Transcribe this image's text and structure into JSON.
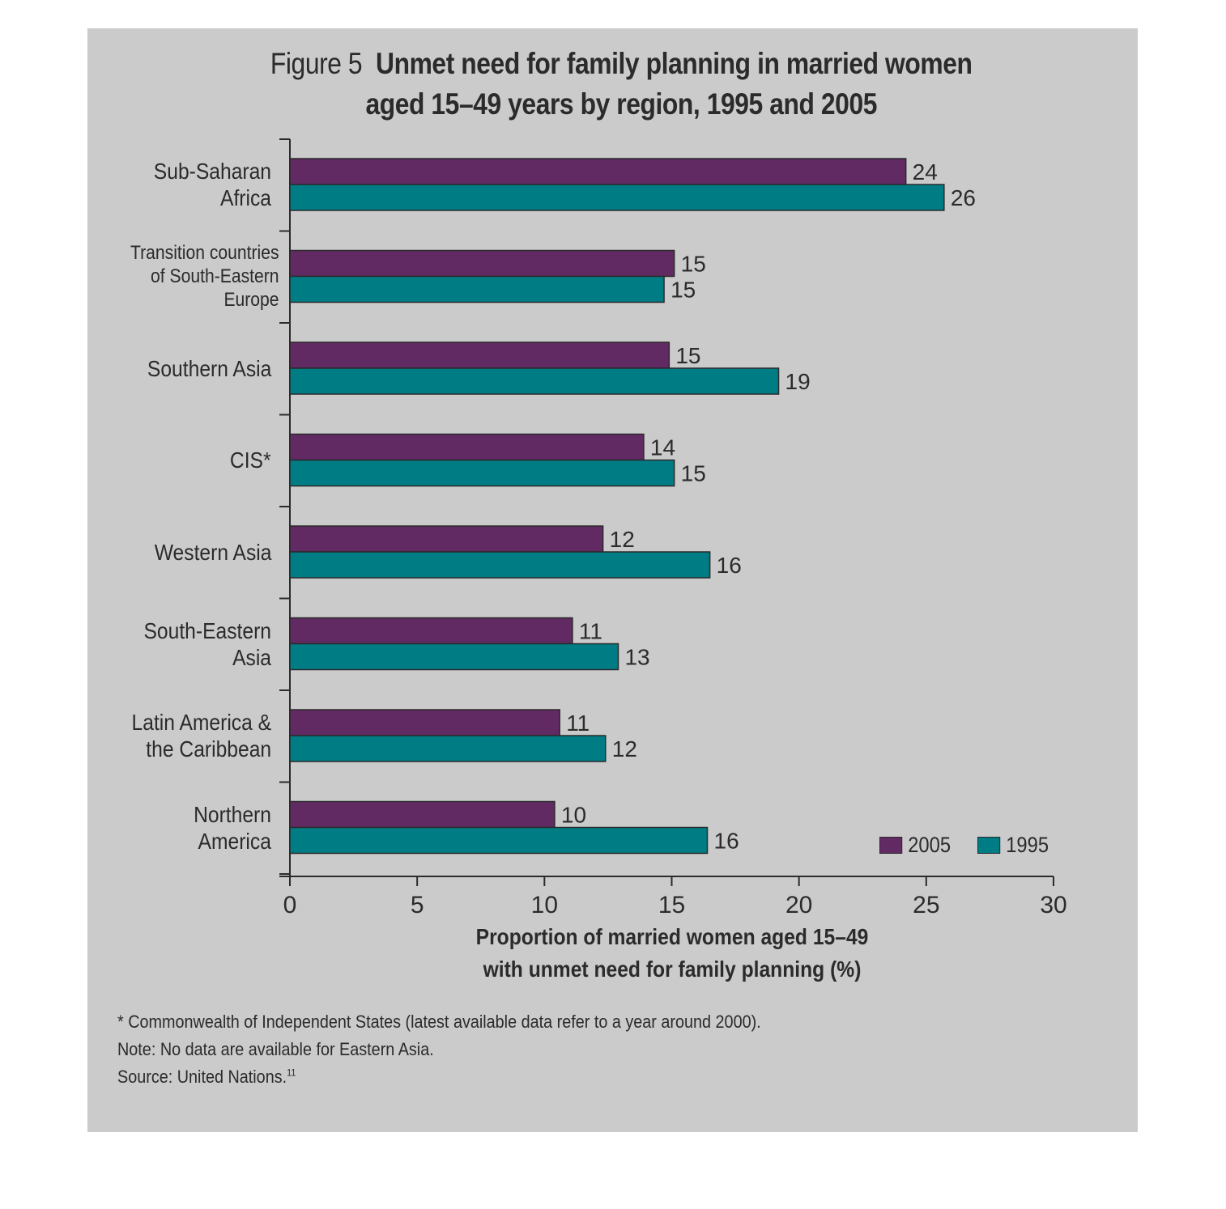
{
  "title": {
    "figure_label": "Figure 5",
    "line1": "Unmet need for family planning in married women",
    "line2": "aged 15–49 years by region, 1995 and 2005"
  },
  "chart_data": {
    "type": "bar",
    "orientation": "horizontal",
    "categories": [
      [
        "Sub-Saharan",
        "Africa"
      ],
      [
        "Transition countries",
        "of South-Eastern",
        "Europe"
      ],
      [
        "Southern Asia"
      ],
      [
        "CIS*"
      ],
      [
        "Western Asia"
      ],
      [
        "South-Eastern",
        "Asia"
      ],
      [
        "Latin America &",
        "the Caribbean"
      ],
      [
        "Northern",
        "America"
      ]
    ],
    "series": [
      {
        "name": "2005",
        "color": "#612a63",
        "values": [
          24,
          15,
          15,
          14,
          12,
          11,
          11,
          10
        ],
        "plot_values": [
          24.2,
          15.1,
          14.9,
          13.9,
          12.3,
          11.1,
          10.6,
          10.4
        ]
      },
      {
        "name": "1995",
        "color": "#007c85",
        "values": [
          26,
          15,
          19,
          15,
          16,
          13,
          12,
          16
        ],
        "plot_values": [
          25.7,
          14.7,
          19.2,
          15.1,
          16.5,
          12.9,
          12.4,
          16.4
        ]
      }
    ],
    "xlim": [
      0,
      30
    ],
    "xticks": [
      "0",
      "5",
      "10",
      "15",
      "20",
      "25",
      "30"
    ],
    "xlabel": [
      "Proportion of married women aged 15–49",
      "with unmet need for family planning (%)"
    ],
    "legend": {
      "placement": "bottom-right",
      "order": [
        "2005",
        "1995"
      ]
    },
    "grid": false
  },
  "notes": {
    "footnote": "* Commonwealth of Independent States (latest available data refer to a year around 2000).",
    "note": "Note: No data are available for Eastern Asia.",
    "source": "Source: United Nations.",
    "source_ref": "11"
  }
}
